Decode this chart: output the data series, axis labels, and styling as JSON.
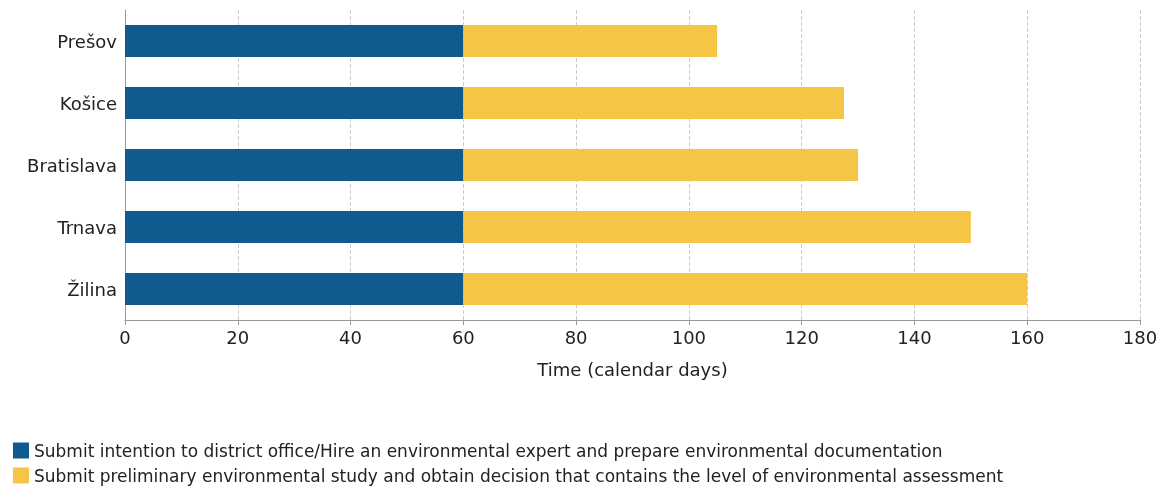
{
  "chart_data": {
    "type": "bar",
    "orientation": "horizontal",
    "stacked": true,
    "xlabel": "Time (calendar days)",
    "categories": [
      "Prešov",
      "Košice",
      "Bratislava",
      "Trnava",
      "Žilina"
    ],
    "series": [
      {
        "name": "Submit intention to district office/Hire an environmental expert and prepare environmental documentation",
        "color": "#0f5a8f",
        "values": [
          60,
          60,
          60,
          60,
          60
        ]
      },
      {
        "name": "Submit preliminary environmental study and obtain decision that contains the level of environmental assessment",
        "color": "#f5c645",
        "values": [
          45,
          67.5,
          70,
          90,
          100
        ]
      }
    ],
    "xlim": [
      0,
      180
    ],
    "xticks": [
      0,
      20,
      40,
      60,
      80,
      100,
      120,
      140,
      160,
      180
    ],
    "grid": "x",
    "legend": "bottom left"
  }
}
